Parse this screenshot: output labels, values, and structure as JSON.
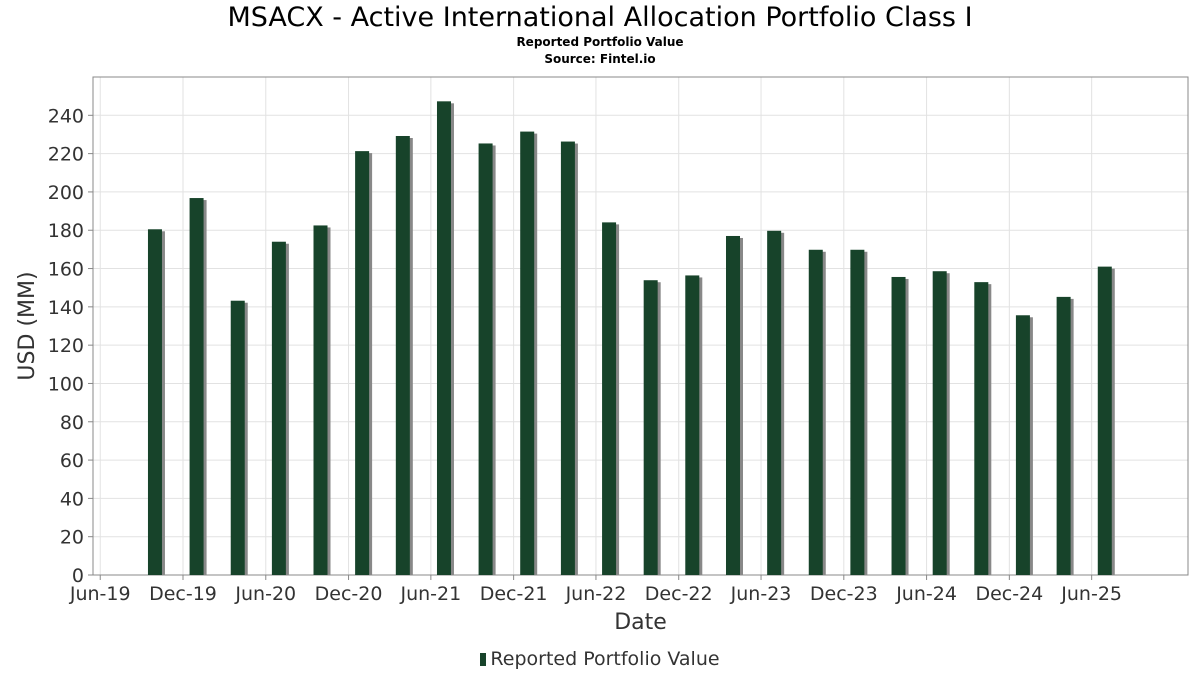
{
  "chart_data": {
    "type": "bar",
    "title": "MSACX - Active International Allocation Portfolio Class I",
    "subtitle": "Reported Portfolio Value",
    "source": "Source: Fintel.io",
    "xlabel": "Date",
    "ylabel": "USD (MM)",
    "ylim": [
      0,
      260
    ],
    "yticks": [
      0,
      20,
      40,
      60,
      80,
      100,
      120,
      140,
      160,
      180,
      200,
      220,
      240
    ],
    "xlim": [
      "2019-05-16",
      "2025-12-31"
    ],
    "xticks": [
      {
        "label": "Jun-19",
        "date": "2019-06-01"
      },
      {
        "label": "Dec-19",
        "date": "2019-12-01"
      },
      {
        "label": "Jun-20",
        "date": "2020-06-01"
      },
      {
        "label": "Dec-20",
        "date": "2020-12-01"
      },
      {
        "label": "Jun-21",
        "date": "2021-06-01"
      },
      {
        "label": "Dec-21",
        "date": "2021-12-01"
      },
      {
        "label": "Jun-22",
        "date": "2022-06-01"
      },
      {
        "label": "Dec-22",
        "date": "2022-12-01"
      },
      {
        "label": "Jun-23",
        "date": "2023-06-01"
      },
      {
        "label": "Dec-23",
        "date": "2023-12-01"
      },
      {
        "label": "Jun-24",
        "date": "2024-06-01"
      },
      {
        "label": "Dec-24",
        "date": "2024-12-01"
      },
      {
        "label": "Jun-25",
        "date": "2025-06-01"
      }
    ],
    "grid": true,
    "legend_position": "bottom",
    "series": [
      {
        "name": "Reported Portfolio Value",
        "color": "#17432A",
        "shadow_color": "#888888",
        "points": [
          {
            "x": "2019-09-30",
            "y": 180.5
          },
          {
            "x": "2019-12-31",
            "y": 196.8
          },
          {
            "x": "2020-03-31",
            "y": 143.2
          },
          {
            "x": "2020-06-30",
            "y": 174.0
          },
          {
            "x": "2020-09-30",
            "y": 182.5
          },
          {
            "x": "2020-12-31",
            "y": 221.3
          },
          {
            "x": "2021-03-31",
            "y": 229.2
          },
          {
            "x": "2021-06-30",
            "y": 247.3
          },
          {
            "x": "2021-09-30",
            "y": 225.3
          },
          {
            "x": "2021-12-31",
            "y": 231.5
          },
          {
            "x": "2022-03-31",
            "y": 226.3
          },
          {
            "x": "2022-06-30",
            "y": 184.1
          },
          {
            "x": "2022-09-30",
            "y": 153.9
          },
          {
            "x": "2022-12-31",
            "y": 156.4
          },
          {
            "x": "2023-03-31",
            "y": 177.0
          },
          {
            "x": "2023-06-30",
            "y": 179.7
          },
          {
            "x": "2023-09-30",
            "y": 169.8
          },
          {
            "x": "2023-12-31",
            "y": 169.8
          },
          {
            "x": "2024-03-31",
            "y": 155.6
          },
          {
            "x": "2024-06-30",
            "y": 158.6
          },
          {
            "x": "2024-09-30",
            "y": 152.9
          },
          {
            "x": "2024-12-31",
            "y": 135.6
          },
          {
            "x": "2025-03-31",
            "y": 145.2
          },
          {
            "x": "2025-06-30",
            "y": 161.0
          }
        ]
      }
    ]
  }
}
